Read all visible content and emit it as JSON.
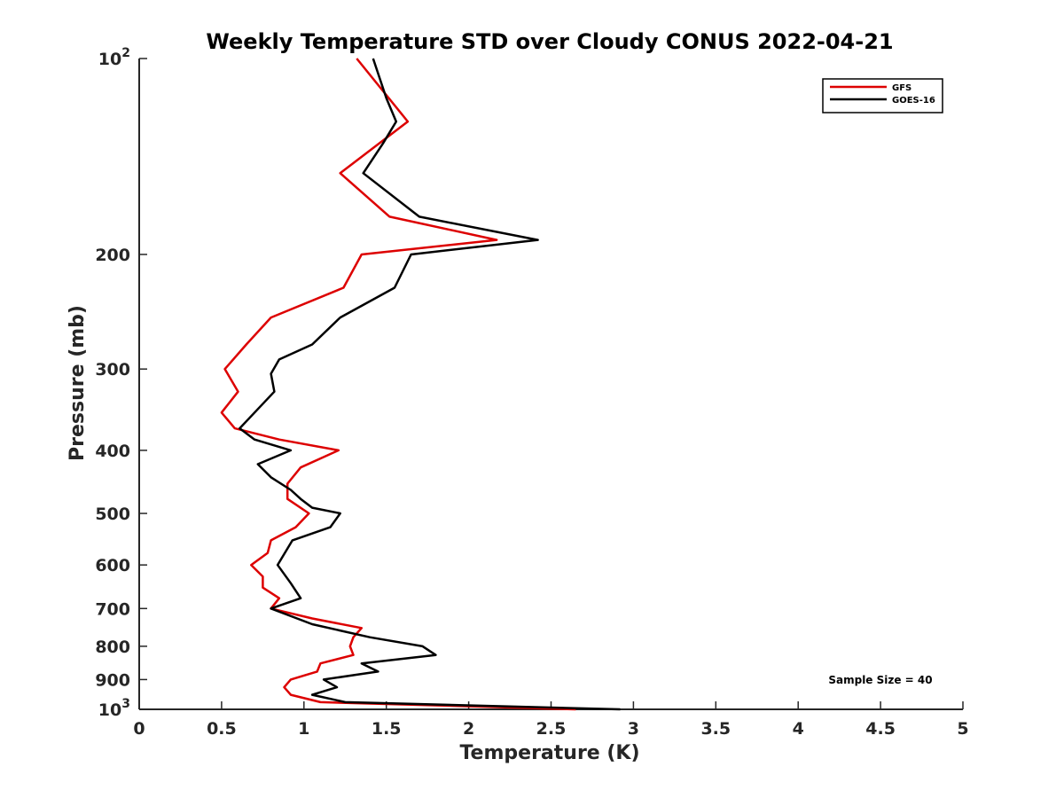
{
  "chart_data": {
    "type": "line",
    "title": "Weekly Temperature STD over Cloudy CONUS 2022-04-21",
    "xlabel": "Temperature (K)",
    "ylabel": "Pressure (mb)",
    "xlim": [
      0,
      5
    ],
    "ylim": [
      100,
      1000
    ],
    "y_scale": "log",
    "y_reversed": true,
    "x_ticks": [
      0,
      0.5,
      1,
      1.5,
      2,
      2.5,
      3,
      3.5,
      4,
      4.5,
      5
    ],
    "x_tick_labels": [
      "0",
      "0.5",
      "1",
      "1.5",
      "2",
      "2.5",
      "3",
      "3.5",
      "4",
      "4.5",
      "5"
    ],
    "y_ticks": [
      100,
      200,
      300,
      400,
      500,
      600,
      700,
      800,
      900,
      1000
    ],
    "y_tick_labels": [
      {
        "base": "10",
        "exp": "2"
      },
      {
        "base": "200"
      },
      {
        "base": "300"
      },
      {
        "base": "400"
      },
      {
        "base": "500"
      },
      {
        "base": "600"
      },
      {
        "base": "700"
      },
      {
        "base": "800"
      },
      {
        "base": "900"
      },
      {
        "base": "10",
        "exp": "3"
      }
    ],
    "grid": false,
    "legend_position": "top-right",
    "annotation": "Sample Size = 40",
    "series": [
      {
        "name": "GFS",
        "color": "#dd0000",
        "points": [
          [
            1.32,
            100
          ],
          [
            1.63,
            125
          ],
          [
            1.22,
            150
          ],
          [
            1.52,
            175
          ],
          [
            2.17,
            190
          ],
          [
            1.35,
            200
          ],
          [
            1.24,
            225
          ],
          [
            0.8,
            250
          ],
          [
            0.65,
            275
          ],
          [
            0.52,
            300
          ],
          [
            0.6,
            325
          ],
          [
            0.5,
            350
          ],
          [
            0.58,
            370
          ],
          [
            0.85,
            385
          ],
          [
            1.21,
            400
          ],
          [
            0.98,
            425
          ],
          [
            0.9,
            450
          ],
          [
            0.9,
            475
          ],
          [
            1.03,
            500
          ],
          [
            0.95,
            525
          ],
          [
            0.8,
            550
          ],
          [
            0.78,
            575
          ],
          [
            0.68,
            600
          ],
          [
            0.75,
            625
          ],
          [
            0.75,
            650
          ],
          [
            0.85,
            675
          ],
          [
            0.8,
            700
          ],
          [
            1.05,
            725
          ],
          [
            1.35,
            750
          ],
          [
            1.3,
            775
          ],
          [
            1.28,
            800
          ],
          [
            1.3,
            825
          ],
          [
            1.1,
            850
          ],
          [
            1.08,
            875
          ],
          [
            0.92,
            900
          ],
          [
            0.88,
            925
          ],
          [
            0.92,
            950
          ],
          [
            1.1,
            975
          ],
          [
            2.65,
            1000
          ]
        ]
      },
      {
        "name": "GOES-16",
        "color": "#000000",
        "points": [
          [
            1.42,
            100
          ],
          [
            1.5,
            115
          ],
          [
            1.56,
            125
          ],
          [
            1.48,
            135
          ],
          [
            1.36,
            150
          ],
          [
            1.7,
            175
          ],
          [
            2.42,
            190
          ],
          [
            1.65,
            200
          ],
          [
            1.55,
            225
          ],
          [
            1.22,
            250
          ],
          [
            1.05,
            275
          ],
          [
            0.85,
            290
          ],
          [
            0.8,
            305
          ],
          [
            0.82,
            325
          ],
          [
            0.7,
            350
          ],
          [
            0.61,
            370
          ],
          [
            0.7,
            385
          ],
          [
            0.92,
            400
          ],
          [
            0.72,
            420
          ],
          [
            0.8,
            440
          ],
          [
            0.92,
            460
          ],
          [
            0.98,
            475
          ],
          [
            1.05,
            490
          ],
          [
            1.22,
            500
          ],
          [
            1.16,
            525
          ],
          [
            0.93,
            550
          ],
          [
            0.84,
            600
          ],
          [
            0.92,
            640
          ],
          [
            0.98,
            675
          ],
          [
            0.8,
            700
          ],
          [
            1.05,
            740
          ],
          [
            1.4,
            775
          ],
          [
            1.72,
            800
          ],
          [
            1.8,
            825
          ],
          [
            1.35,
            850
          ],
          [
            1.45,
            875
          ],
          [
            1.12,
            900
          ],
          [
            1.2,
            925
          ],
          [
            1.05,
            950
          ],
          [
            1.25,
            975
          ],
          [
            2.92,
            1000
          ]
        ]
      }
    ]
  }
}
